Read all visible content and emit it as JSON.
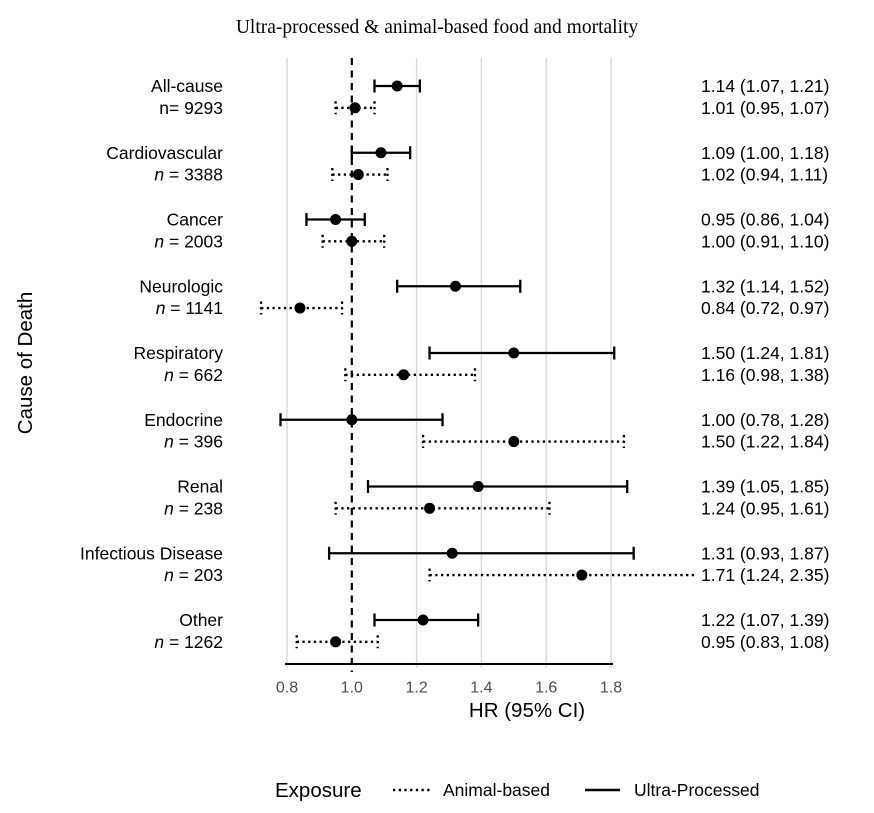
{
  "chart_data": {
    "type": "forest",
    "title": "Ultra-processed & animal-based food and mortality",
    "xlabel": "HR (95% CI)",
    "ylabel": "Cause of Death",
    "xlim": [
      0.8,
      1.8
    ],
    "x_ticks": [
      "0.8",
      "1.0",
      "1.2",
      "1.4",
      "1.6",
      "1.8"
    ],
    "reference_line": 1.0,
    "grid": true,
    "colors": {
      "line": "#000000",
      "gridline": "#dadada",
      "tick_text": "#4d4d4d"
    },
    "legend": {
      "title": "Exposure",
      "position": "bottom",
      "items": [
        {
          "label": "Animal-based",
          "line_style": "dotted"
        },
        {
          "label": "Ultra-Processed",
          "line_style": "solid"
        }
      ]
    },
    "rows": [
      {
        "cause": "All-cause",
        "n_label": "n= 9293",
        "n_italic_prefix": false,
        "ultra_processed": {
          "hr": 1.14,
          "lo": 1.07,
          "hi": 1.21,
          "label": "1.14 (1.07, 1.21)"
        },
        "animal_based": {
          "hr": 1.01,
          "lo": 0.95,
          "hi": 1.07,
          "label": "1.01 (0.95, 1.07)"
        }
      },
      {
        "cause": "Cardiovascular",
        "n_label": "n = 3388",
        "n_italic_prefix": true,
        "ultra_processed": {
          "hr": 1.09,
          "lo": 1.0,
          "hi": 1.18,
          "label": "1.09 (1.00, 1.18)"
        },
        "animal_based": {
          "hr": 1.02,
          "lo": 0.94,
          "hi": 1.11,
          "label": "1.02 (0.94, 1.11)"
        }
      },
      {
        "cause": "Cancer",
        "n_label": "n = 2003",
        "n_italic_prefix": true,
        "ultra_processed": {
          "hr": 0.95,
          "lo": 0.86,
          "hi": 1.04,
          "label": "0.95 (0.86, 1.04)"
        },
        "animal_based": {
          "hr": 1.0,
          "lo": 0.91,
          "hi": 1.1,
          "label": "1.00 (0.91, 1.10)"
        }
      },
      {
        "cause": "Neurologic",
        "n_label": "n = 1141",
        "n_italic_prefix": true,
        "ultra_processed": {
          "hr": 1.32,
          "lo": 1.14,
          "hi": 1.52,
          "label": "1.32 (1.14, 1.52)"
        },
        "animal_based": {
          "hr": 0.84,
          "lo": 0.72,
          "hi": 0.97,
          "label": "0.84 (0.72, 0.97)"
        }
      },
      {
        "cause": "Respiratory",
        "n_label": "n = 662",
        "n_italic_prefix": true,
        "ultra_processed": {
          "hr": 1.5,
          "lo": 1.24,
          "hi": 1.81,
          "label": "1.50 (1.24, 1.81)"
        },
        "animal_based": {
          "hr": 1.16,
          "lo": 0.98,
          "hi": 1.38,
          "label": "1.16 (0.98, 1.38)"
        }
      },
      {
        "cause": "Endocrine",
        "n_label": "n = 396",
        "n_italic_prefix": true,
        "ultra_processed": {
          "hr": 1.0,
          "lo": 0.78,
          "hi": 1.28,
          "label": "1.00 (0.78, 1.28)"
        },
        "animal_based": {
          "hr": 1.5,
          "lo": 1.22,
          "hi": 1.84,
          "label": "1.50 (1.22, 1.84)"
        }
      },
      {
        "cause": "Renal",
        "n_label": "n = 238",
        "n_italic_prefix": true,
        "ultra_processed": {
          "hr": 1.39,
          "lo": 1.05,
          "hi": 1.85,
          "label": "1.39 (1.05, 1.85)"
        },
        "animal_based": {
          "hr": 1.24,
          "lo": 0.95,
          "hi": 1.61,
          "label": "1.24 (0.95, 1.61)"
        }
      },
      {
        "cause": "Infectious Disease",
        "n_label": "n = 203",
        "n_italic_prefix": true,
        "ultra_processed": {
          "hr": 1.31,
          "lo": 0.93,
          "hi": 1.87,
          "label": "1.31 (0.93, 1.87)"
        },
        "animal_based": {
          "hr": 1.71,
          "lo": 1.24,
          "hi": 2.35,
          "label": "1.71 (1.24, 2.35)"
        }
      },
      {
        "cause": "Other",
        "n_label": "n = 1262",
        "n_italic_prefix": true,
        "ultra_processed": {
          "hr": 1.22,
          "lo": 1.07,
          "hi": 1.39,
          "label": "1.22 (1.07, 1.39)"
        },
        "animal_based": {
          "hr": 0.95,
          "lo": 0.83,
          "hi": 1.08,
          "label": "0.95 (0.83, 1.08)"
        }
      }
    ]
  }
}
